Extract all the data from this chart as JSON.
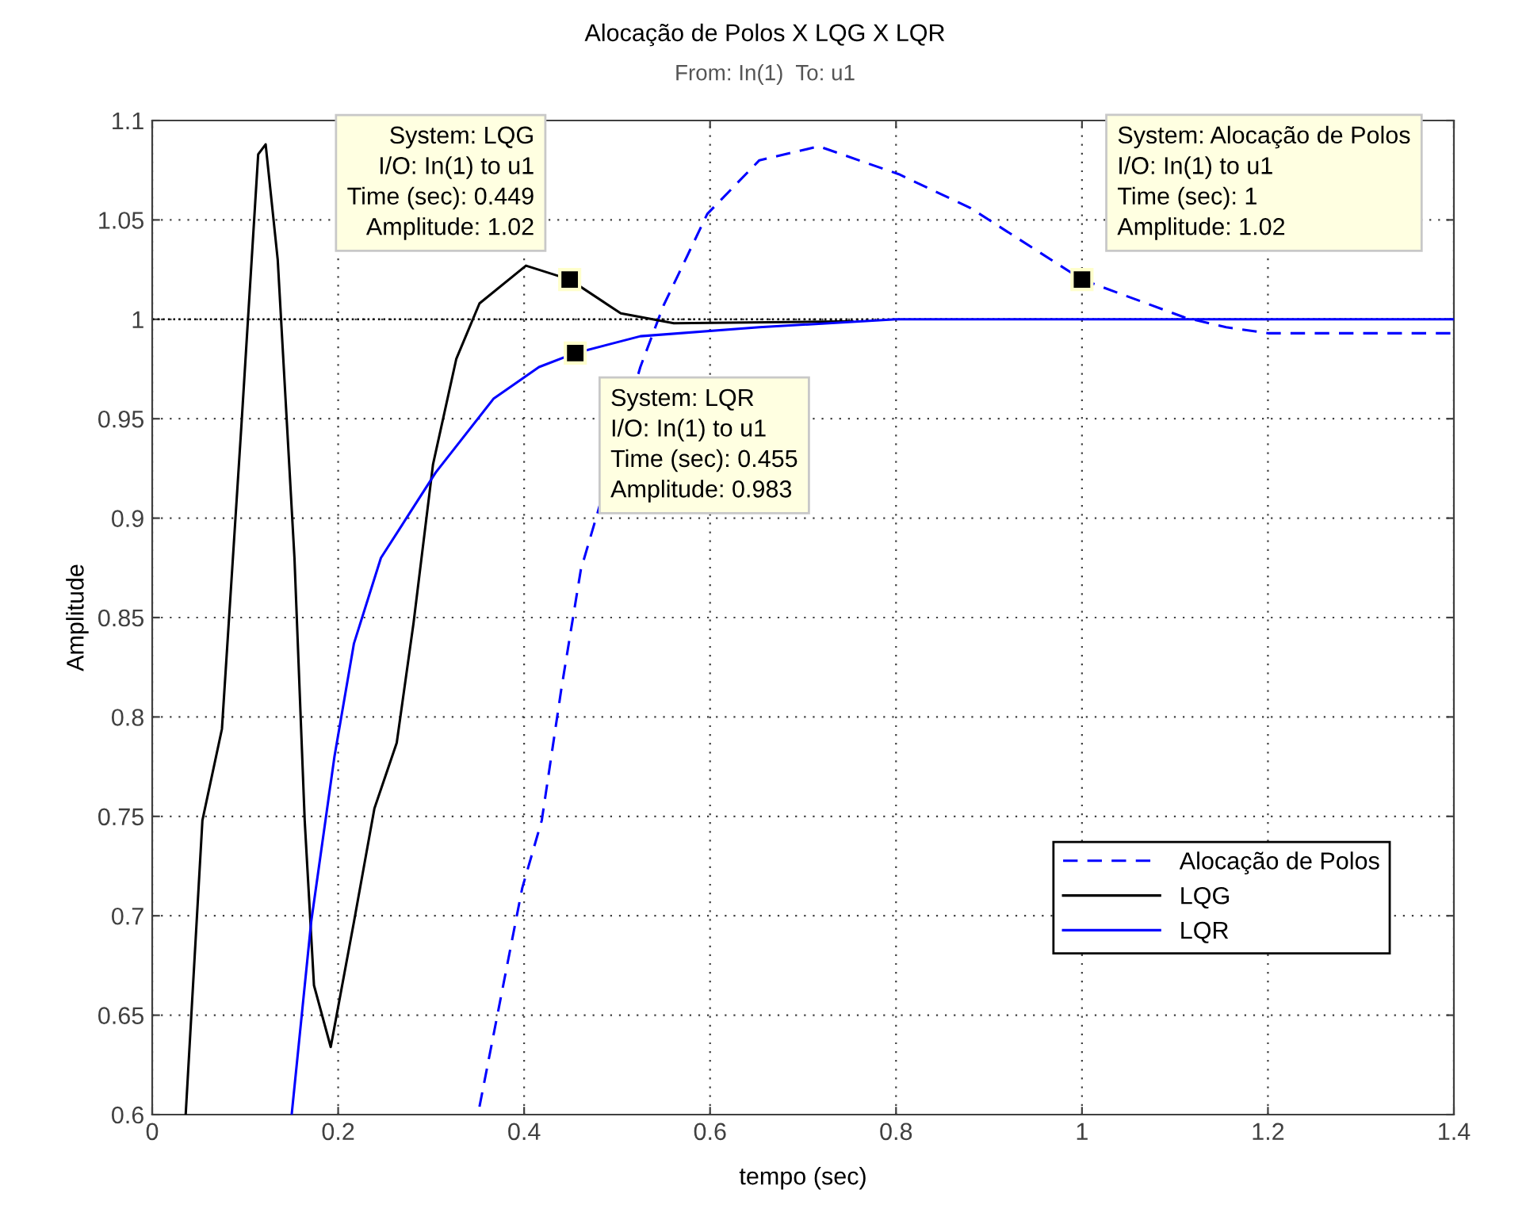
{
  "chart_data": {
    "type": "line",
    "title": "Alocação de Polos X LQG X LQR",
    "subtitle": "From: In(1)  To: u1",
    "xlabel": "tempo (sec)",
    "ylabel": "Amplitude",
    "xlim": [
      0,
      1.4
    ],
    "xticks": [
      0,
      0.2,
      0.4,
      0.6,
      0.8,
      1,
      1.2,
      1.4
    ],
    "ylim": [
      0.6,
      1.1
    ],
    "yticks": [
      0.6,
      0.65,
      0.7,
      0.75,
      0.8,
      0.85,
      0.9,
      0.95,
      1,
      1.05,
      1.1
    ],
    "grid": true,
    "legend": "lower right",
    "ref_lines": [
      {
        "axis": "y",
        "value": 1,
        "color": "#000000",
        "line_style": "dotted"
      }
    ],
    "series": [
      {
        "name": "Alocação de Polos",
        "color": "#0000ff",
        "line_style": "dashed",
        "x": [
          0.352,
          0.398,
          0.419,
          0.44,
          0.461,
          0.525,
          0.55,
          0.597,
          0.653,
          0.717,
          0.803,
          0.88,
          1.0,
          1.11,
          1.155,
          1.2,
          1.4
        ],
        "values": [
          0.604,
          0.714,
          0.748,
          0.814,
          0.874,
          0.976,
          1.007,
          1.053,
          1.08,
          1.087,
          1.073,
          1.056,
          1.02,
          1.001,
          0.996,
          0.993,
          0.993
        ]
      },
      {
        "name": "LQG",
        "color": "#000000",
        "line_style": "solid",
        "x": [
          0.036,
          0.054,
          0.075,
          0.096,
          0.114,
          0.122,
          0.135,
          0.153,
          0.164,
          0.174,
          0.192,
          0.217,
          0.239,
          0.263,
          0.281,
          0.302,
          0.327,
          0.352,
          0.402,
          0.449,
          0.504,
          0.561,
          0.753
        ],
        "values": [
          0.6,
          0.748,
          0.794,
          0.947,
          1.083,
          1.088,
          1.03,
          0.88,
          0.748,
          0.665,
          0.634,
          0.697,
          0.754,
          0.787,
          0.847,
          0.927,
          0.98,
          1.008,
          1.027,
          1.02,
          1.003,
          0.998,
          0.999
        ]
      },
      {
        "name": "LQR",
        "color": "#0000ff",
        "line_style": "solid",
        "x": [
          0.15,
          0.171,
          0.196,
          0.217,
          0.246,
          0.305,
          0.367,
          0.416,
          0.455,
          0.525,
          0.653,
          0.8,
          1.4
        ],
        "values": [
          0.6,
          0.697,
          0.78,
          0.837,
          0.88,
          0.923,
          0.96,
          0.976,
          0.983,
          0.9915,
          0.996,
          1.0,
          1.0
        ]
      }
    ],
    "annotations": [
      {
        "text": "System: LQG\nI/O: In(1) to u1\nTime (sec): 0.449\nAmplitude: 1.02",
        "x": 0.449,
        "y": 1.02
      },
      {
        "text": "System: LQR\nI/O: In(1) to u1\nTime (sec): 0.455\nAmplitude: 0.983",
        "x": 0.455,
        "y": 0.983
      },
      {
        "text": "System: Alocação de Polos\nI/O: In(1) to u1\nTime (sec): 1\nAmplitude: 1.02",
        "x": 1,
        "y": 1.02
      }
    ]
  }
}
